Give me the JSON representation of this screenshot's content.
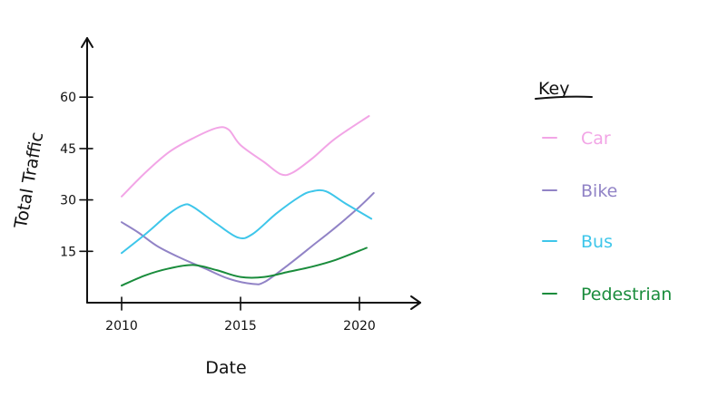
{
  "chart_data": {
    "type": "line",
    "title": "",
    "xlabel": "Date",
    "ylabel": "Total Traffic",
    "x_ticks": [
      2010,
      2015,
      2020
    ],
    "x_tick_labels": [
      "2010",
      "2015",
      "2020"
    ],
    "y_ticks": [
      15,
      30,
      45,
      60
    ],
    "y_tick_labels": [
      "15",
      "30",
      "45",
      "60"
    ],
    "xlim": [
      2008.6,
      2022.5
    ],
    "ylim": [
      0,
      76
    ],
    "grid": false,
    "legend": {
      "title": "Key",
      "position": "right"
    },
    "series": [
      {
        "name": "Car",
        "color": "#f2a5e6",
        "points": [
          [
            2010,
            31
          ],
          [
            2011,
            38
          ],
          [
            2012,
            44
          ],
          [
            2013,
            48
          ],
          [
            2014,
            51
          ],
          [
            2014.5,
            50.5
          ],
          [
            2015,
            46
          ],
          [
            2016,
            41
          ],
          [
            2016.7,
            37.5
          ],
          [
            2017.2,
            38
          ],
          [
            2018,
            42
          ],
          [
            2019,
            48
          ],
          [
            2020.4,
            54.5
          ]
        ]
      },
      {
        "name": "Bike",
        "color": "#9183c6",
        "points": [
          [
            2010,
            23.5
          ],
          [
            2010.7,
            20.5
          ],
          [
            2011.5,
            16.5
          ],
          [
            2012.5,
            13
          ],
          [
            2013.5,
            10
          ],
          [
            2014.5,
            7
          ],
          [
            2015.5,
            5.5
          ],
          [
            2016,
            6
          ],
          [
            2017,
            11
          ],
          [
            2018,
            16.5
          ],
          [
            2019,
            22
          ],
          [
            2020,
            28
          ],
          [
            2020.6,
            32
          ]
        ]
      },
      {
        "name": "Bus",
        "color": "#3ec6ea",
        "points": [
          [
            2010,
            14.5
          ],
          [
            2011,
            20
          ],
          [
            2012,
            26
          ],
          [
            2012.6,
            28.5
          ],
          [
            2013,
            28
          ],
          [
            2014,
            23
          ],
          [
            2014.9,
            19
          ],
          [
            2015.5,
            20
          ],
          [
            2016.5,
            26
          ],
          [
            2017.5,
            31
          ],
          [
            2018,
            32.5
          ],
          [
            2018.6,
            32.5
          ],
          [
            2019.4,
            29
          ],
          [
            2020.5,
            24.5
          ]
        ]
      },
      {
        "name": "Pedestrian",
        "color": "#1a8c3c",
        "points": [
          [
            2010,
            5
          ],
          [
            2011,
            8
          ],
          [
            2012,
            10
          ],
          [
            2013,
            11
          ],
          [
            2014,
            9.5
          ],
          [
            2015,
            7.5
          ],
          [
            2016,
            7.5
          ],
          [
            2017,
            9
          ],
          [
            2018,
            10.5
          ],
          [
            2019,
            12.5
          ],
          [
            2020.3,
            16
          ]
        ]
      }
    ]
  }
}
